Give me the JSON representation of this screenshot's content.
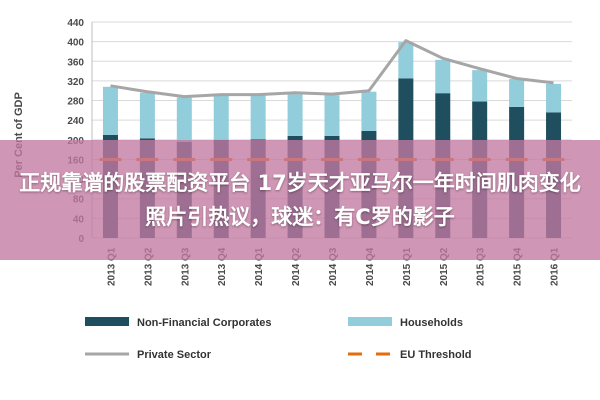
{
  "overlay": {
    "headline": "正规靠谱的股票配资平台 17岁天才亚马尔一年时间肌肉变化照片引热议，球迷：有C罗的影子"
  },
  "chart_data": {
    "type": "bar",
    "stacked": true,
    "title": "",
    "xlabel": "",
    "ylabel": "Per Cent of GDP",
    "ylim": [
      0,
      440
    ],
    "yticks": [
      0,
      40,
      80,
      120,
      160,
      200,
      240,
      280,
      320,
      360,
      400,
      440
    ],
    "grid": true,
    "legend_position": "bottom",
    "categories": [
      "2013 Q1",
      "2013 Q2",
      "2013 Q3",
      "2013 Q4",
      "2014 Q1",
      "2014 Q2",
      "2014 Q3",
      "2014 Q4",
      "2015 Q1",
      "2015 Q2",
      "2015 Q3",
      "2015 Q4",
      "2016 Q1"
    ],
    "series": [
      {
        "name": "Non-Financial Corporates",
        "type": "bar",
        "color": "#1f4e5f",
        "values": [
          210,
          203,
          196,
          200,
          201,
          208,
          208,
          218,
          325,
          295,
          278,
          267,
          256
        ]
      },
      {
        "name": "Households",
        "type": "bar",
        "color": "#92cddc",
        "values": [
          98,
          93,
          90,
          90,
          89,
          85,
          83,
          80,
          74,
          68,
          64,
          57,
          58
        ]
      },
      {
        "name": "Private Sector",
        "type": "line",
        "color": "#a6a6a6",
        "values": [
          310,
          298,
          288,
          292,
          292,
          296,
          293,
          300,
          402,
          366,
          345,
          325,
          316
        ]
      },
      {
        "name": "EU Threshold",
        "type": "dashed",
        "color": "#e46c0a",
        "values": [
          160,
          160,
          160,
          160,
          160,
          160,
          160,
          160,
          160,
          160,
          160,
          160,
          160
        ]
      }
    ]
  }
}
